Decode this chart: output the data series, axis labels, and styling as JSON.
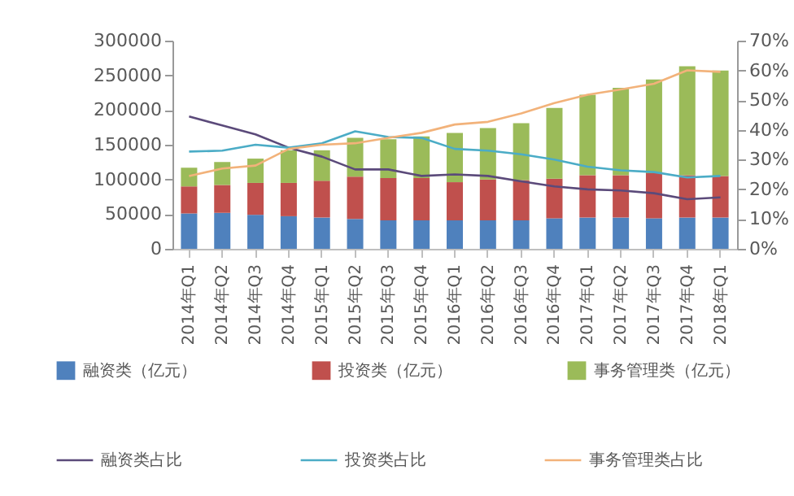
{
  "chart_data": {
    "type": "bar",
    "stacked": true,
    "categories": [
      "2014年Q1",
      "2014年Q2",
      "2014年Q3",
      "2014年Q4",
      "2015年Q1",
      "2015年Q2",
      "2015年Q3",
      "2015年Q4",
      "2016年Q1",
      "2016年Q2",
      "2016年Q3",
      "2016年Q4",
      "2017年Q1",
      "2017年Q2",
      "2017年Q3",
      "2017年Q4",
      "2018年Q1"
    ],
    "series": [
      {
        "name": "融资类（亿元）",
        "color": "#4f81bd",
        "values": [
          51000,
          52000,
          49000,
          47000,
          45000,
          43000,
          41000,
          41000,
          41000,
          41000,
          41000,
          44000,
          45000,
          45000,
          44000,
          45000,
          45000
        ]
      },
      {
        "name": "投资类（亿元）",
        "color": "#c0504d",
        "values": [
          39000,
          40000,
          46000,
          48000,
          53000,
          61000,
          61000,
          61000,
          55000,
          59000,
          58000,
          57000,
          61000,
          61000,
          65000,
          61000,
          60000
        ]
      },
      {
        "name": "事务管理类（亿元）",
        "color": "#9bbb59",
        "values": [
          27000,
          33000,
          35000,
          47000,
          44000,
          56000,
          56000,
          60000,
          71000,
          74000,
          82000,
          102000,
          116000,
          126000,
          135000,
          157000,
          152000
        ]
      },
      {
        "name": "融资类占比",
        "type": "line",
        "axis": "y2",
        "color": "#5b4a7a",
        "values": [
          44.5,
          41.5,
          38.5,
          34,
          31,
          26.7,
          26.7,
          24.5,
          25,
          24.5,
          22.7,
          21,
          20,
          19.6,
          18.7,
          16.7,
          17.3
        ]
      },
      {
        "name": "投资类占比",
        "type": "line",
        "axis": "y2",
        "color": "#4bacc6",
        "values": [
          32.7,
          33,
          35,
          34,
          35.5,
          39.5,
          37.6,
          37.3,
          33.6,
          33,
          31.8,
          30,
          27.6,
          26.4,
          25.8,
          24,
          24.5
        ]
      },
      {
        "name": "事务管理类占比",
        "type": "line",
        "axis": "y2",
        "color": "#f2b27a",
        "values": [
          24.5,
          27,
          28,
          33.6,
          35,
          35.5,
          37.3,
          39,
          41.8,
          42.7,
          45.5,
          49,
          51.8,
          53.6,
          55.5,
          60,
          59.5
        ]
      }
    ],
    "ylim": [
      0,
      300000
    ],
    "yticks": [
      0,
      50000,
      100000,
      150000,
      200000,
      250000,
      300000
    ],
    "y2lim": [
      0,
      70
    ],
    "y2ticks": [
      {
        "value": 0,
        "label": "0%"
      },
      {
        "value": 10,
        "label": "10%"
      },
      {
        "value": 20,
        "label": "20%"
      },
      {
        "value": 30,
        "label": "30%"
      },
      {
        "value": 40,
        "label": "40%"
      },
      {
        "value": 50,
        "label": "50%"
      },
      {
        "value": 60,
        "label": "60%"
      },
      {
        "value": 70,
        "label": "70%"
      }
    ],
    "grid": false,
    "legend": "bottom"
  }
}
